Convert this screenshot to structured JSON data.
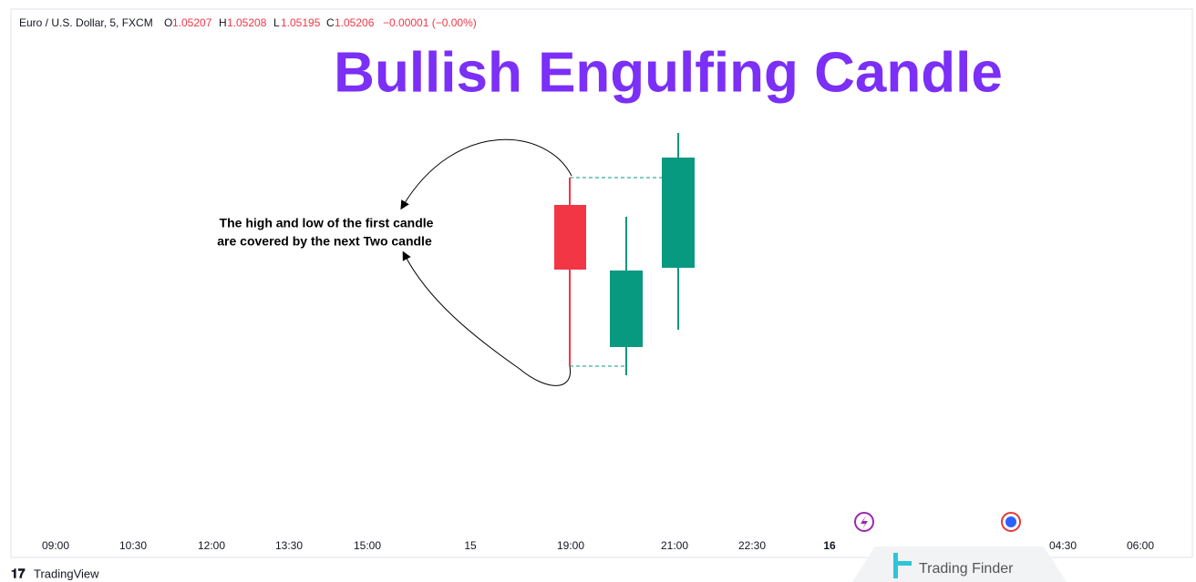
{
  "header": {
    "symbol": "Euro / U.S. Dollar, 5, FXCM",
    "open_label": "O",
    "open": "1.05207",
    "high_label": "H",
    "high": "1.05208",
    "low_label": "L",
    "low": "1.05195",
    "close_label": "C",
    "close": "1.05206",
    "change": "−0.00001 (−0.00%)"
  },
  "title": "Bullish Engulfing Candle",
  "annotation": {
    "lines": [
      "The high and low of the first candle",
      "are covered by the next Two candle"
    ]
  },
  "time_axis": [
    "09:00",
    "10:30",
    "12:00",
    "13:30",
    "15:00",
    "15",
    "19:00",
    "21:00",
    "22:30",
    "16",
    "04:30",
    "06:00"
  ],
  "footer": {
    "brand": "TradingView",
    "watermark": "Trading Finder"
  }
}
